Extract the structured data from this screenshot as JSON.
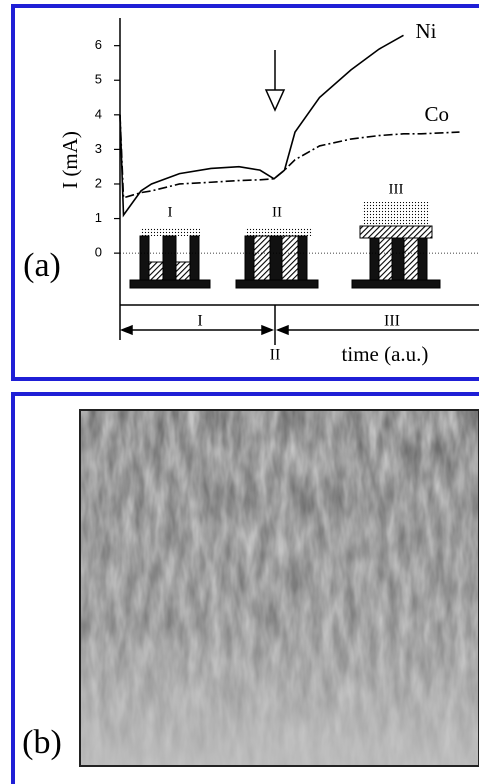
{
  "chart_data": {
    "type": "line",
    "panel_label": "(a)",
    "y_label": "I (mA)",
    "x_label": "time (a.u.)",
    "x": [
      0,
      1,
      6,
      9,
      17,
      26,
      34,
      40,
      44,
      47,
      50,
      57,
      66,
      74,
      81,
      86,
      97
    ],
    "series": [
      {
        "name": "Ni",
        "color": "#000000",
        "dash": "none",
        "values": [
          4,
          1.1,
          1.8,
          2.0,
          2.3,
          2.45,
          2.5,
          2.4,
          2.15,
          2.4,
          3.5,
          4.5,
          5.3,
          5.9,
          6.3,
          null,
          null
        ]
      },
      {
        "name": "Co",
        "color": "#000000",
        "dash": "9,3,2,3",
        "values": [
          4,
          1.6,
          1.75,
          1.8,
          2.0,
          2.05,
          2.1,
          2.12,
          2.15,
          2.4,
          2.7,
          3.1,
          3.3,
          3.4,
          3.45,
          3.45,
          3.5
        ]
      }
    ],
    "xlim": [
      0,
      100
    ],
    "ylim": [
      -1.5,
      6.8
    ],
    "yticks": [
      0,
      1,
      2,
      3,
      4,
      5,
      6
    ],
    "diagram_labels": [
      "I",
      "II",
      "III"
    ],
    "phases": [
      "I",
      "II",
      "III"
    ]
  },
  "panel_b": {
    "label": "(b)"
  }
}
